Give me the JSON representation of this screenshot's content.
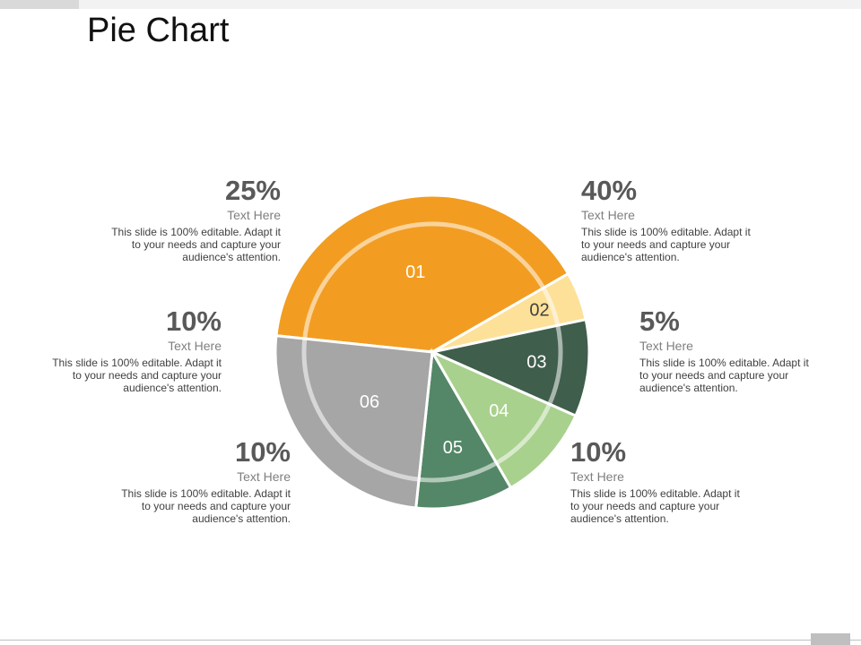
{
  "slide": {
    "title": "Pie Chart"
  },
  "chart_data": {
    "type": "pie",
    "slices": [
      {
        "label": "01",
        "value": 40,
        "color": "#F29D21"
      },
      {
        "label": "02",
        "value": 5,
        "color": "#FDE199"
      },
      {
        "label": "03",
        "value": 10,
        "color": "#3F5E4C"
      },
      {
        "label": "04",
        "value": 10,
        "color": "#A9D18E"
      },
      {
        "label": "05",
        "value": 10,
        "color": "#548767"
      },
      {
        "label": "06",
        "value": 25,
        "color": "#A6A6A6"
      }
    ]
  },
  "callouts": [
    {
      "pct": "25%",
      "heading": "Text Here",
      "body": "This slide is 100% editable. Adapt it to your needs and capture your audience's attention."
    },
    {
      "pct": "40%",
      "heading": "Text Here",
      "body": "This slide is 100% editable. Adapt it to your needs and capture your audience's attention."
    },
    {
      "pct": "10%",
      "heading": "Text Here",
      "body": "This slide is 100% editable. Adapt it to your needs and capture your audience's attention."
    },
    {
      "pct": "5%",
      "heading": "Text Here",
      "body": "This slide is 100% editable. Adapt it to your needs and capture your audience's attention."
    },
    {
      "pct": "10%",
      "heading": "Text Here",
      "body": "This slide is 100% editable. Adapt it to your needs and capture your audience's attention."
    },
    {
      "pct": "10%",
      "heading": "Text Here",
      "body": "This slide is 100% editable. Adapt it to your needs and capture your audience's attention."
    }
  ]
}
